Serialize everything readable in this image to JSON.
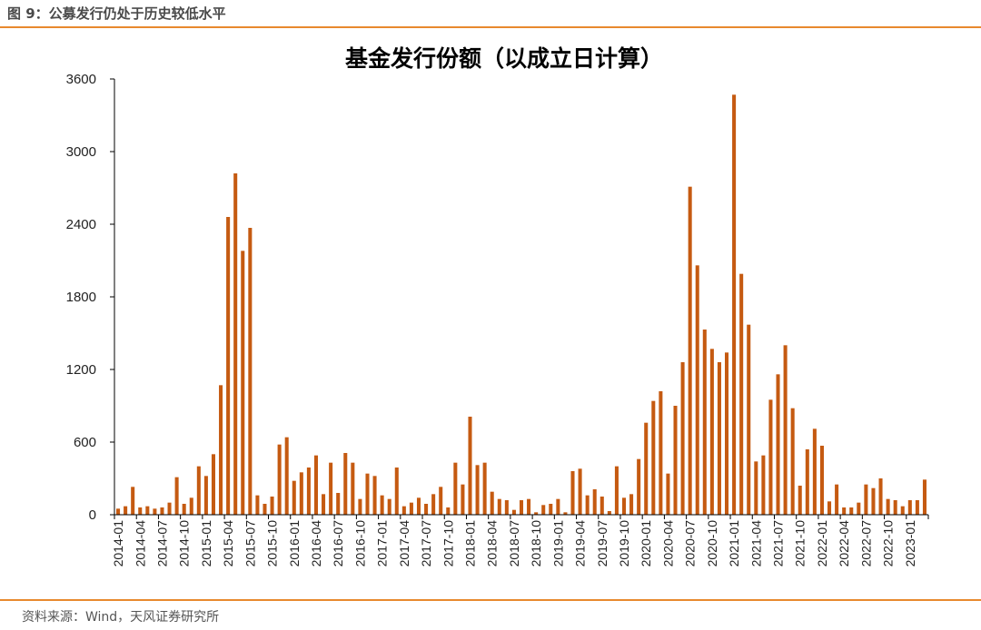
{
  "header": {
    "caption": "图 9：公募发行仍处于历史较低水平"
  },
  "footer": {
    "source": "资料来源：Wind，天风证券研究所"
  },
  "colors": {
    "bar": "#c55a11",
    "accent_rule": "#e8892e",
    "axis": "#000000"
  },
  "chart_data": {
    "type": "bar",
    "title": "基金发行份额（以成立日计算）",
    "xlabel": "",
    "ylabel": "",
    "ylim": [
      0,
      3600
    ],
    "yticks": [
      0,
      600,
      1200,
      1800,
      2400,
      3000,
      3600
    ],
    "ytick_labels": [
      "0",
      "600",
      "1200",
      "1800",
      "2400",
      "3000",
      "3600"
    ],
    "grid": false,
    "legend": "none",
    "tick_labels": [
      "2014-01",
      "2014-04",
      "2014-07",
      "2014-10",
      "2015-01",
      "2015-04",
      "2015-07",
      "2015-10",
      "2016-01",
      "2016-04",
      "2016-07",
      "2016-10",
      "2017-01",
      "2017-04",
      "2017-07",
      "2017-10",
      "2018-01",
      "2018-04",
      "2018-07",
      "2018-10",
      "2019-01",
      "2019-04",
      "2019-07",
      "2019-10",
      "2020-01",
      "2020-04",
      "2020-07",
      "2020-10",
      "2021-01",
      "2021-04",
      "2021-07",
      "2021-10",
      "2022-01",
      "2022-04",
      "2022-07",
      "2022-10",
      "2023-01"
    ],
    "categories": [
      "2014-01",
      "2014-02",
      "2014-03",
      "2014-04",
      "2014-05",
      "2014-06",
      "2014-07",
      "2014-08",
      "2014-09",
      "2014-10",
      "2014-11",
      "2014-12",
      "2015-01",
      "2015-02",
      "2015-03",
      "2015-04",
      "2015-05",
      "2015-06",
      "2015-07",
      "2015-08",
      "2015-09",
      "2015-10",
      "2015-11",
      "2015-12",
      "2016-01",
      "2016-02",
      "2016-03",
      "2016-04",
      "2016-05",
      "2016-06",
      "2016-07",
      "2016-08",
      "2016-09",
      "2016-10",
      "2016-11",
      "2016-12",
      "2017-01",
      "2017-02",
      "2017-03",
      "2017-04",
      "2017-05",
      "2017-06",
      "2017-07",
      "2017-08",
      "2017-09",
      "2017-10",
      "2017-11",
      "2017-12",
      "2018-01",
      "2018-02",
      "2018-03",
      "2018-04",
      "2018-05",
      "2018-06",
      "2018-07",
      "2018-08",
      "2018-09",
      "2018-10",
      "2018-11",
      "2018-12",
      "2019-01",
      "2019-02",
      "2019-03",
      "2019-04",
      "2019-05",
      "2019-06",
      "2019-07",
      "2019-08",
      "2019-09",
      "2019-10",
      "2019-11",
      "2019-12",
      "2020-01",
      "2020-02",
      "2020-03",
      "2020-04",
      "2020-05",
      "2020-06",
      "2020-07",
      "2020-08",
      "2020-09",
      "2020-10",
      "2020-11",
      "2020-12",
      "2021-01",
      "2021-02",
      "2021-03",
      "2021-04",
      "2021-05",
      "2021-06",
      "2021-07",
      "2021-08",
      "2021-09",
      "2021-10",
      "2021-11",
      "2021-12",
      "2022-01",
      "2022-02",
      "2022-03",
      "2022-04",
      "2022-05",
      "2022-06",
      "2022-07",
      "2022-08",
      "2022-09",
      "2022-10",
      "2022-11",
      "2022-12",
      "2023-01",
      "2023-02",
      "2023-03"
    ],
    "values": [
      50,
      70,
      230,
      60,
      70,
      50,
      60,
      100,
      310,
      90,
      140,
      400,
      320,
      500,
      1070,
      2460,
      2820,
      2180,
      2370,
      160,
      90,
      150,
      580,
      640,
      280,
      350,
      390,
      490,
      170,
      430,
      180,
      510,
      430,
      130,
      340,
      320,
      160,
      130,
      390,
      70,
      100,
      140,
      90,
      170,
      230,
      60,
      430,
      250,
      810,
      410,
      430,
      190,
      130,
      120,
      40,
      120,
      130,
      20,
      80,
      90,
      130,
      20,
      360,
      380,
      160,
      210,
      150,
      30,
      400,
      140,
      170,
      460,
      760,
      940,
      1020,
      340,
      900,
      1260,
      2710,
      2060,
      1530,
      1370,
      1260,
      1340,
      3470,
      1990,
      1570,
      440,
      490,
      950,
      1160,
      1400,
      880,
      240,
      540,
      710,
      570,
      110,
      250,
      60,
      60,
      100,
      250,
      220,
      300,
      130,
      120,
      70,
      120,
      120,
      290
    ]
  }
}
